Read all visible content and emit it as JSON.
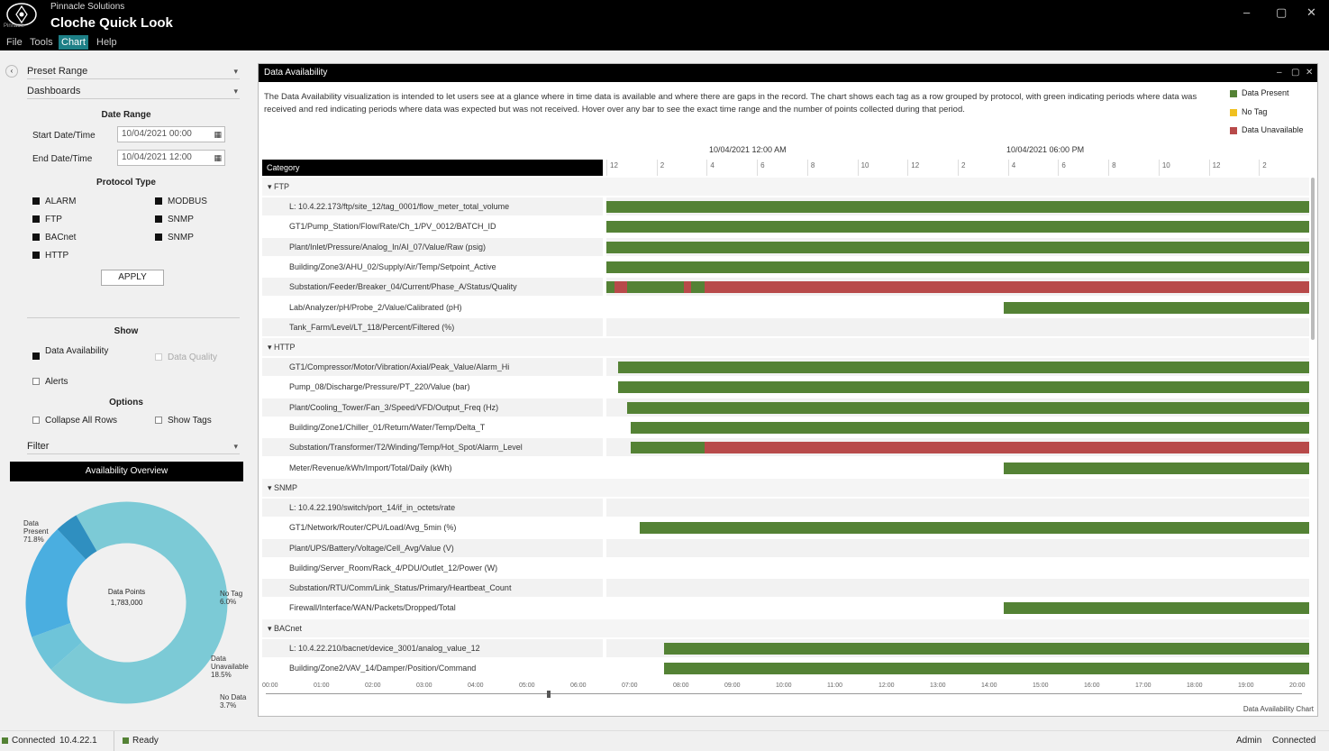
{
  "window": {
    "app_name": "Pinnacle Solutions",
    "title": "Cloche Quick Look",
    "logo_caption": "Pinnacle",
    "controls": [
      "–",
      "▢",
      "✕"
    ]
  },
  "menu": [
    "File",
    "Tools",
    "Chart",
    "Help"
  ],
  "menu_active": 2,
  "left": {
    "dropdown_1": "Preset Range",
    "dropdown_2": "Dashboards",
    "date_range_title": "Date Range",
    "start_label": "Start Date/Time",
    "start_value": "10/04/2021 00:00",
    "end_label": "End Date/Time",
    "end_value": "10/04/2021 12:00",
    "protocol_title": "Protocol Type",
    "protocols": [
      {
        "label": "ALARM",
        "checked": true
      },
      {
        "label": "MODBUS",
        "checked": true
      },
      {
        "label": "FTP",
        "checked": true
      },
      {
        "label": "SNMP",
        "checked": true
      },
      {
        "label": "BACnet",
        "checked": true
      },
      {
        "label": "SNMP",
        "checked": true
      },
      {
        "label": "HTTP",
        "checked": true
      }
    ],
    "apply_label": "APPLY",
    "show_title": "Show",
    "show_options": [
      {
        "label": "Data Availability",
        "checked": true,
        "enabled": true
      },
      {
        "label": "Data Quality",
        "checked": false,
        "enabled": false
      },
      {
        "label": "Alerts",
        "checked": false,
        "enabled": true
      }
    ],
    "options_title": "Options",
    "options": [
      {
        "label": "Collapse All Rows",
        "checked": false
      },
      {
        "label": "Show Tags",
        "checked": false
      }
    ],
    "filter_label": "Filter",
    "availability_button": "Availability Overview",
    "donut": {
      "center_label": "Data Points",
      "center_value": "1,783,000",
      "slices": [
        {
          "label": "Data Present",
          "value": 71.8,
          "color": "#7ccad6"
        },
        {
          "label": "No Data",
          "value": 3.7,
          "color": "#2f8fc0"
        },
        {
          "label": "Data Unavailable",
          "value": 18.5,
          "color": "#4aaee0"
        },
        {
          "label": "No Tag",
          "value": 6.0,
          "color": "#6ec4d9"
        }
      ],
      "callouts": [
        "Data Present 71.8%",
        "No Tag 6.0%",
        "Data Unavailable 18.5%",
        "No Data 3.7%"
      ]
    }
  },
  "main": {
    "panel_title": "Data Availability",
    "header_controls": [
      "–",
      "▢",
      "✕"
    ],
    "description": "The Data Availability visualization is intended to let users see at a glance where in time data is available and where there are gaps in the record. The chart shows each tag as a row grouped by protocol, with green indicating periods where data was received and red indicating periods where data was expected but was not received. Hover over any bar to see the exact time range and the number of points collected during that period.",
    "legend": [
      {
        "label": "Data Present",
        "color": "#548235"
      },
      {
        "label": "No Tag",
        "color": "#f0c020"
      },
      {
        "label": "Data Unavailable",
        "color": "#b84a4a"
      }
    ],
    "day_labels": [
      "10/04/2021 12:00 AM",
      "10/04/2021 06:00 PM"
    ],
    "category_header": "Category",
    "hours": [
      "12",
      "2",
      "4",
      "6",
      "8",
      "10",
      "12",
      "2",
      "4",
      "6",
      "8",
      "10",
      "12",
      "2"
    ],
    "x_ticks": [
      "00:00",
      "01:00",
      "02:00",
      "03:00",
      "04:00",
      "05:00",
      "06:00",
      "07:00",
      "08:00",
      "09:00",
      "10:00",
      "11:00",
      "12:00",
      "13:00",
      "14:00",
      "15:00",
      "16:00",
      "17:00",
      "18:00",
      "19:00",
      "20:00"
    ],
    "footer": "Data Availability Chart",
    "groups": [
      {
        "name": "▾ FTP",
        "rows": [
          {
            "label": "L: 10.4.22.173/ftp/site_12/tag_0001/flow_meter_total_volume",
            "segments": [
              [
                0.0,
                1.0,
                "g"
              ]
            ]
          },
          {
            "label": "GT1/Pump_Station/Flow/Rate/Ch_1/PV_0012/BATCH_ID",
            "segments": [
              [
                0.0,
                1.0,
                "g"
              ]
            ]
          },
          {
            "label": "Plant/Inlet/Pressure/Analog_In/AI_07/Value/Raw (psig)",
            "segments": [
              [
                0.0,
                1.0,
                "g"
              ]
            ]
          },
          {
            "label": "Building/Zone3/AHU_02/Supply/Air/Temp/Setpoint_Active",
            "segments": [
              [
                0.0,
                1.0,
                "g"
              ]
            ]
          },
          {
            "label": "Substation/Feeder/Breaker_04/Current/Phase_A/Status/Quality",
            "segments": [
              [
                0.0,
                0.012,
                "g"
              ],
              [
                0.012,
                0.03,
                "r"
              ],
              [
                0.03,
                0.11,
                "g"
              ],
              [
                0.11,
                0.12,
                "r"
              ],
              [
                0.12,
                0.14,
                "g"
              ],
              [
                0.14,
                1.0,
                "r"
              ]
            ]
          },
          {
            "label": "Lab/Analyzer/pH/Probe_2/Value/Calibrated (pH)",
            "segments": [
              [
                0.565,
                1.0,
                "g"
              ]
            ]
          },
          {
            "label": "Tank_Farm/Level/LT_118/Percent/Filtered (%)",
            "segments": []
          }
        ]
      },
      {
        "name": "▾ HTTP",
        "rows": [
          {
            "label": "GT1/Compressor/Motor/Vibration/Axial/Peak_Value/Alarm_Hi",
            "segments": [
              [
                0.017,
                1.0,
                "g"
              ]
            ]
          },
          {
            "label": "Pump_08/Discharge/Pressure/PT_220/Value (bar)",
            "segments": [
              [
                0.017,
                1.0,
                "g"
              ]
            ]
          },
          {
            "label": "Plant/Cooling_Tower/Fan_3/Speed/VFD/Output_Freq (Hz)",
            "segments": [
              [
                0.03,
                1.0,
                "g"
              ]
            ]
          },
          {
            "label": "Building/Zone1/Chiller_01/Return/Water/Temp/Delta_T",
            "segments": [
              [
                0.035,
                1.0,
                "g"
              ]
            ]
          },
          {
            "label": "Substation/Transformer/T2/Winding/Temp/Hot_Spot/Alarm_Level",
            "segments": [
              [
                0.035,
                0.14,
                "g"
              ],
              [
                0.14,
                1.0,
                "r"
              ]
            ]
          },
          {
            "label": "Meter/Revenue/kWh/Import/Total/Daily (kWh)",
            "segments": [
              [
                0.565,
                1.0,
                "g"
              ]
            ]
          }
        ]
      },
      {
        "name": "▾ SNMP",
        "rows": [
          {
            "label": "L: 10.4.22.190/switch/port_14/if_in_octets/rate",
            "segments": []
          },
          {
            "label": "GT1/Network/Router/CPU/Load/Avg_5min (%)",
            "segments": [
              [
                0.048,
                1.0,
                "g"
              ]
            ]
          },
          {
            "label": "Plant/UPS/Battery/Voltage/Cell_Avg/Value (V)",
            "segments": []
          },
          {
            "label": "Building/Server_Room/Rack_4/PDU/Outlet_12/Power (W)",
            "segments": []
          },
          {
            "label": "Substation/RTU/Comm/Link_Status/Primary/Heartbeat_Count",
            "segments": []
          },
          {
            "label": "Firewall/Interface/WAN/Packets/Dropped/Total",
            "segments": [
              [
                0.565,
                1.0,
                "g"
              ]
            ]
          }
        ]
      },
      {
        "name": "▾ BACnet",
        "rows": [
          {
            "label": "L: 10.4.22.210/bacnet/device_3001/analog_value_12",
            "segments": [
              [
                0.082,
                1.0,
                "g"
              ]
            ]
          },
          {
            "label": "Building/Zone2/VAV_14/Damper/Position/Command",
            "segments": [
              [
                0.082,
                1.0,
                "g"
              ]
            ]
          }
        ]
      }
    ]
  },
  "status": {
    "left_label": "Connected",
    "left_value": "10.4.22.1",
    "mid_label": "Ready",
    "right_1": "Admin",
    "right_2": "Connected"
  }
}
